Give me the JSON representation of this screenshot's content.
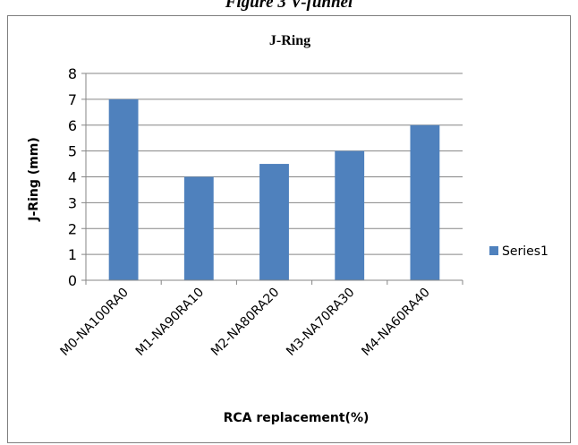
{
  "caption": "Figure 3 V-funnel",
  "chart_data": {
    "type": "bar",
    "title": "J-Ring",
    "xlabel": "RCA replacement(%)",
    "ylabel": "J-Ring (mm)",
    "categories": [
      "M0-NA100RA0",
      "M1-NA90RA10",
      "M2-NA80RA20",
      "M3-NA70RA30",
      "M4-NA60RA40"
    ],
    "series": [
      {
        "name": "Series1",
        "values": [
          7,
          4,
          4.5,
          5,
          6
        ],
        "color": "#4f81bd"
      }
    ],
    "ylim": [
      0,
      8
    ],
    "yticks": [
      "0",
      "1",
      "2",
      "3",
      "4",
      "5",
      "6",
      "7",
      "8"
    ],
    "grid": true,
    "legend": "right"
  }
}
